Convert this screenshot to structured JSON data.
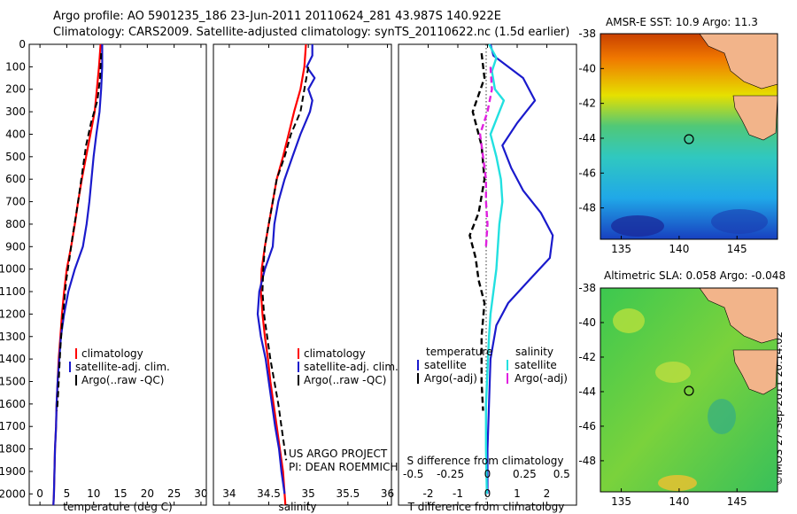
{
  "header": {
    "line1": "Argo profile: AO 5901235_186 23-Jun-2011 20110624_281 43.987S 140.922E",
    "line2": "Climatology: CARS2009. Satellite-adjusted climatology: synTS_20110622.nc (1.5d earlier)"
  },
  "colors": {
    "climatology": "#ff0000",
    "satellite": "#1a1acc",
    "argo": "#000000",
    "sat_salinity": "#22e0e0",
    "argo_adj_salinity": "#e020e0"
  },
  "labels": {
    "us_argo": "US ARGO PROJECT",
    "pi": "PI: DEAN ROEMMICH",
    "s_diff": "S difference from climatology",
    "imos_stamp": "©IMOS 27-Sep-2011 20:14:02"
  },
  "legend1": {
    "climatology": "climatology",
    "satellite": "satellite-adj. clim.",
    "argo": "Argo(..raw -QC)"
  },
  "legend3": {
    "temperature": "temperature",
    "salinity": "salinity",
    "satellite": "satellite",
    "argo_adj": "Argo(-adj)"
  },
  "maps": {
    "sst_title": "AMSR-E SST: 10.9 Argo: 11.3",
    "sla_title": "Altimetric SLA: 0.058 Argo: -0.048",
    "lat_ticks": [
      "-38",
      "-40",
      "-42",
      "-44",
      "-46",
      "-48"
    ],
    "lon_ticks": [
      "135",
      "140",
      "145"
    ],
    "argo_position": {
      "lon": 140.922,
      "lat": -43.987
    }
  },
  "chart_data": [
    {
      "type": "line",
      "xlabel": "temperature (deg C)",
      "xticks": [
        "0",
        "5",
        "10",
        "15",
        "20",
        "25",
        "30"
      ],
      "xlim": [
        -2,
        31
      ],
      "ylim": [
        2050,
        0
      ],
      "yticks": [
        "0",
        "100",
        "200",
        "300",
        "400",
        "500",
        "600",
        "700",
        "800",
        "900",
        "1000",
        "1100",
        "1200",
        "1300",
        "1400",
        "1500",
        "1600",
        "1700",
        "1800",
        "1900",
        "2000"
      ],
      "series": [
        {
          "name": "climatology",
          "points": [
            [
              11.3,
              0
            ],
            [
              11,
              100
            ],
            [
              10.6,
              200
            ],
            [
              10.2,
              300
            ],
            [
              9.4,
              400
            ],
            [
              8.6,
              500
            ],
            [
              7.8,
              600
            ],
            [
              7.1,
              700
            ],
            [
              6.5,
              800
            ],
            [
              5.8,
              900
            ],
            [
              5.0,
              1000
            ],
            [
              4.5,
              1100
            ],
            [
              4.1,
              1200
            ],
            [
              3.8,
              1300
            ],
            [
              3.5,
              1400
            ],
            [
              3.3,
              1500
            ],
            [
              3.1,
              1600
            ],
            [
              3.0,
              1700
            ],
            [
              2.8,
              1800
            ],
            [
              2.7,
              1900
            ],
            [
              2.6,
              2000
            ],
            [
              2.5,
              2050
            ]
          ]
        },
        {
          "name": "satellite-adj. clim.",
          "points": [
            [
              11.6,
              0
            ],
            [
              11.6,
              100
            ],
            [
              11.4,
              200
            ],
            [
              11.1,
              300
            ],
            [
              10.5,
              400
            ],
            [
              10.0,
              500
            ],
            [
              9.6,
              600
            ],
            [
              9.2,
              700
            ],
            [
              8.7,
              800
            ],
            [
              8.0,
              900
            ],
            [
              6.5,
              1000
            ],
            [
              5.3,
              1100
            ],
            [
              4.5,
              1200
            ],
            [
              3.9,
              1300
            ],
            [
              3.6,
              1400
            ],
            [
              3.3,
              1500
            ],
            [
              3.1,
              1600
            ],
            [
              3.0,
              1700
            ],
            [
              2.8,
              1800
            ],
            [
              2.7,
              1900
            ],
            [
              2.6,
              2000
            ],
            [
              2.5,
              2050
            ]
          ]
        },
        {
          "name": "Argo(..raw -QC)",
          "points": [
            [
              11.4,
              40
            ],
            [
              11.2,
              150
            ],
            [
              10.7,
              250
            ],
            [
              9.5,
              350
            ],
            [
              8.6,
              450
            ],
            [
              8.0,
              550
            ],
            [
              7.4,
              650
            ],
            [
              6.8,
              750
            ],
            [
              6.1,
              850
            ],
            [
              5.5,
              950
            ],
            [
              4.9,
              1050
            ],
            [
              4.5,
              1150
            ],
            [
              4.1,
              1250
            ],
            [
              3.8,
              1350
            ],
            [
              3.6,
              1450
            ],
            [
              3.4,
              1550
            ],
            [
              3.2,
              1630
            ]
          ]
        }
      ]
    },
    {
      "type": "line",
      "xlabel": "salinity",
      "xticks": [
        "34",
        "34.5",
        "35",
        "35.5",
        "36"
      ],
      "xlim": [
        33.8,
        36.05
      ],
      "ylim": [
        2050,
        0
      ],
      "series": [
        {
          "name": "climatology",
          "points": [
            [
              34.97,
              0
            ],
            [
              34.95,
              100
            ],
            [
              34.9,
              200
            ],
            [
              34.82,
              300
            ],
            [
              34.75,
              400
            ],
            [
              34.68,
              500
            ],
            [
              34.6,
              600
            ],
            [
              34.55,
              700
            ],
            [
              34.5,
              800
            ],
            [
              34.45,
              900
            ],
            [
              34.41,
              1000
            ],
            [
              34.4,
              1100
            ],
            [
              34.42,
              1200
            ],
            [
              34.45,
              1300
            ],
            [
              34.49,
              1400
            ],
            [
              34.52,
              1500
            ],
            [
              34.56,
              1600
            ],
            [
              34.6,
              1700
            ],
            [
              34.64,
              1800
            ],
            [
              34.68,
              1900
            ],
            [
              34.7,
              2000
            ],
            [
              34.71,
              2050
            ]
          ]
        },
        {
          "name": "satellite-adj. clim.",
          "points": [
            [
              35.05,
              0
            ],
            [
              35.05,
              50
            ],
            [
              34.98,
              100
            ],
            [
              35.08,
              150
            ],
            [
              35.0,
              200
            ],
            [
              35.05,
              250
            ],
            [
              35.02,
              300
            ],
            [
              34.9,
              400
            ],
            [
              34.8,
              500
            ],
            [
              34.7,
              600
            ],
            [
              34.62,
              700
            ],
            [
              34.57,
              800
            ],
            [
              34.55,
              900
            ],
            [
              34.45,
              1000
            ],
            [
              34.38,
              1100
            ],
            [
              34.36,
              1200
            ],
            [
              34.4,
              1300
            ],
            [
              34.46,
              1400
            ],
            [
              34.5,
              1500
            ],
            [
              34.54,
              1600
            ],
            [
              34.58,
              1700
            ],
            [
              34.63,
              1800
            ],
            [
              34.66,
              1900
            ],
            [
              34.7,
              2000
            ]
          ]
        },
        {
          "name": "Argo(..raw -QC)",
          "points": [
            [
              35.0,
              100
            ],
            [
              34.95,
              200
            ],
            [
              34.9,
              300
            ],
            [
              34.78,
              400
            ],
            [
              34.7,
              500
            ],
            [
              34.6,
              600
            ],
            [
              34.55,
              700
            ],
            [
              34.5,
              800
            ],
            [
              34.45,
              900
            ],
            [
              34.43,
              1000
            ],
            [
              34.42,
              1100
            ],
            [
              34.44,
              1200
            ],
            [
              34.48,
              1300
            ],
            [
              34.52,
              1400
            ],
            [
              34.57,
              1500
            ],
            [
              34.62,
              1600
            ],
            [
              34.66,
              1700
            ],
            [
              34.7,
              1800
            ],
            [
              34.72,
              1850
            ]
          ]
        }
      ]
    },
    {
      "type": "line",
      "xlabel": "T difference from climatology",
      "xticks": [
        "-2",
        "-1",
        "0",
        "1",
        "2"
      ],
      "xticks_top": [
        "-0.5",
        "-0.25",
        "0",
        "0.25",
        "0.5"
      ],
      "xlim": [
        -3,
        3
      ],
      "ylim": [
        2050,
        0
      ],
      "series": [
        {
          "name": "satellite",
          "points": [
            [
              0.1,
              0
            ],
            [
              0.2,
              50
            ],
            [
              1.2,
              150
            ],
            [
              1.6,
              250
            ],
            [
              1.0,
              350
            ],
            [
              0.5,
              450
            ],
            [
              0.8,
              550
            ],
            [
              1.2,
              650
            ],
            [
              1.8,
              750
            ],
            [
              2.2,
              850
            ],
            [
              2.1,
              950
            ],
            [
              1.4,
              1050
            ],
            [
              0.7,
              1150
            ],
            [
              0.3,
              1250
            ],
            [
              0.1,
              1400
            ],
            [
              0.05,
              1600
            ],
            [
              0,
              1800
            ],
            [
              0,
              2000
            ]
          ]
        },
        {
          "name": "Argo(-adj)",
          "points": [
            [
              -0.2,
              40
            ],
            [
              -0.1,
              150
            ],
            [
              -0.5,
              300
            ],
            [
              -0.2,
              450
            ],
            [
              -0.1,
              600
            ],
            [
              -0.3,
              750
            ],
            [
              -0.6,
              850
            ],
            [
              -0.4,
              950
            ],
            [
              -0.3,
              1050
            ],
            [
              -0.1,
              1150
            ],
            [
              -0.2,
              1300
            ],
            [
              -0.2,
              1500
            ],
            [
              -0.15,
              1630
            ]
          ]
        },
        {
          "name": "satellite (salinity)",
          "points": [
            [
              0.05,
              0
            ],
            [
              0.3,
              60
            ],
            [
              0.15,
              120
            ],
            [
              0.25,
              200
            ],
            [
              0.55,
              250
            ],
            [
              0.4,
              300
            ],
            [
              0.1,
              400
            ],
            [
              0.3,
              500
            ],
            [
              0.45,
              600
            ],
            [
              0.5,
              700
            ],
            [
              0.4,
              800
            ],
            [
              0.35,
              900
            ],
            [
              0.3,
              1000
            ],
            [
              0.2,
              1100
            ],
            [
              0.1,
              1200
            ],
            [
              0.05,
              1300
            ],
            [
              0.0,
              1450
            ],
            [
              -0.05,
              1600
            ],
            [
              -0.05,
              1800
            ],
            [
              -0.02,
              2000
            ]
          ]
        },
        {
          "name": "Argo(-adj) (salinity)",
          "points": [
            [
              0.1,
              100
            ],
            [
              0.15,
              200
            ],
            [
              0.0,
              300
            ],
            [
              -0.25,
              400
            ],
            [
              -0.15,
              500
            ],
            [
              -0.05,
              600
            ],
            [
              -0.05,
              700
            ],
            [
              0.0,
              800
            ],
            [
              -0.05,
              900
            ]
          ]
        }
      ]
    }
  ]
}
